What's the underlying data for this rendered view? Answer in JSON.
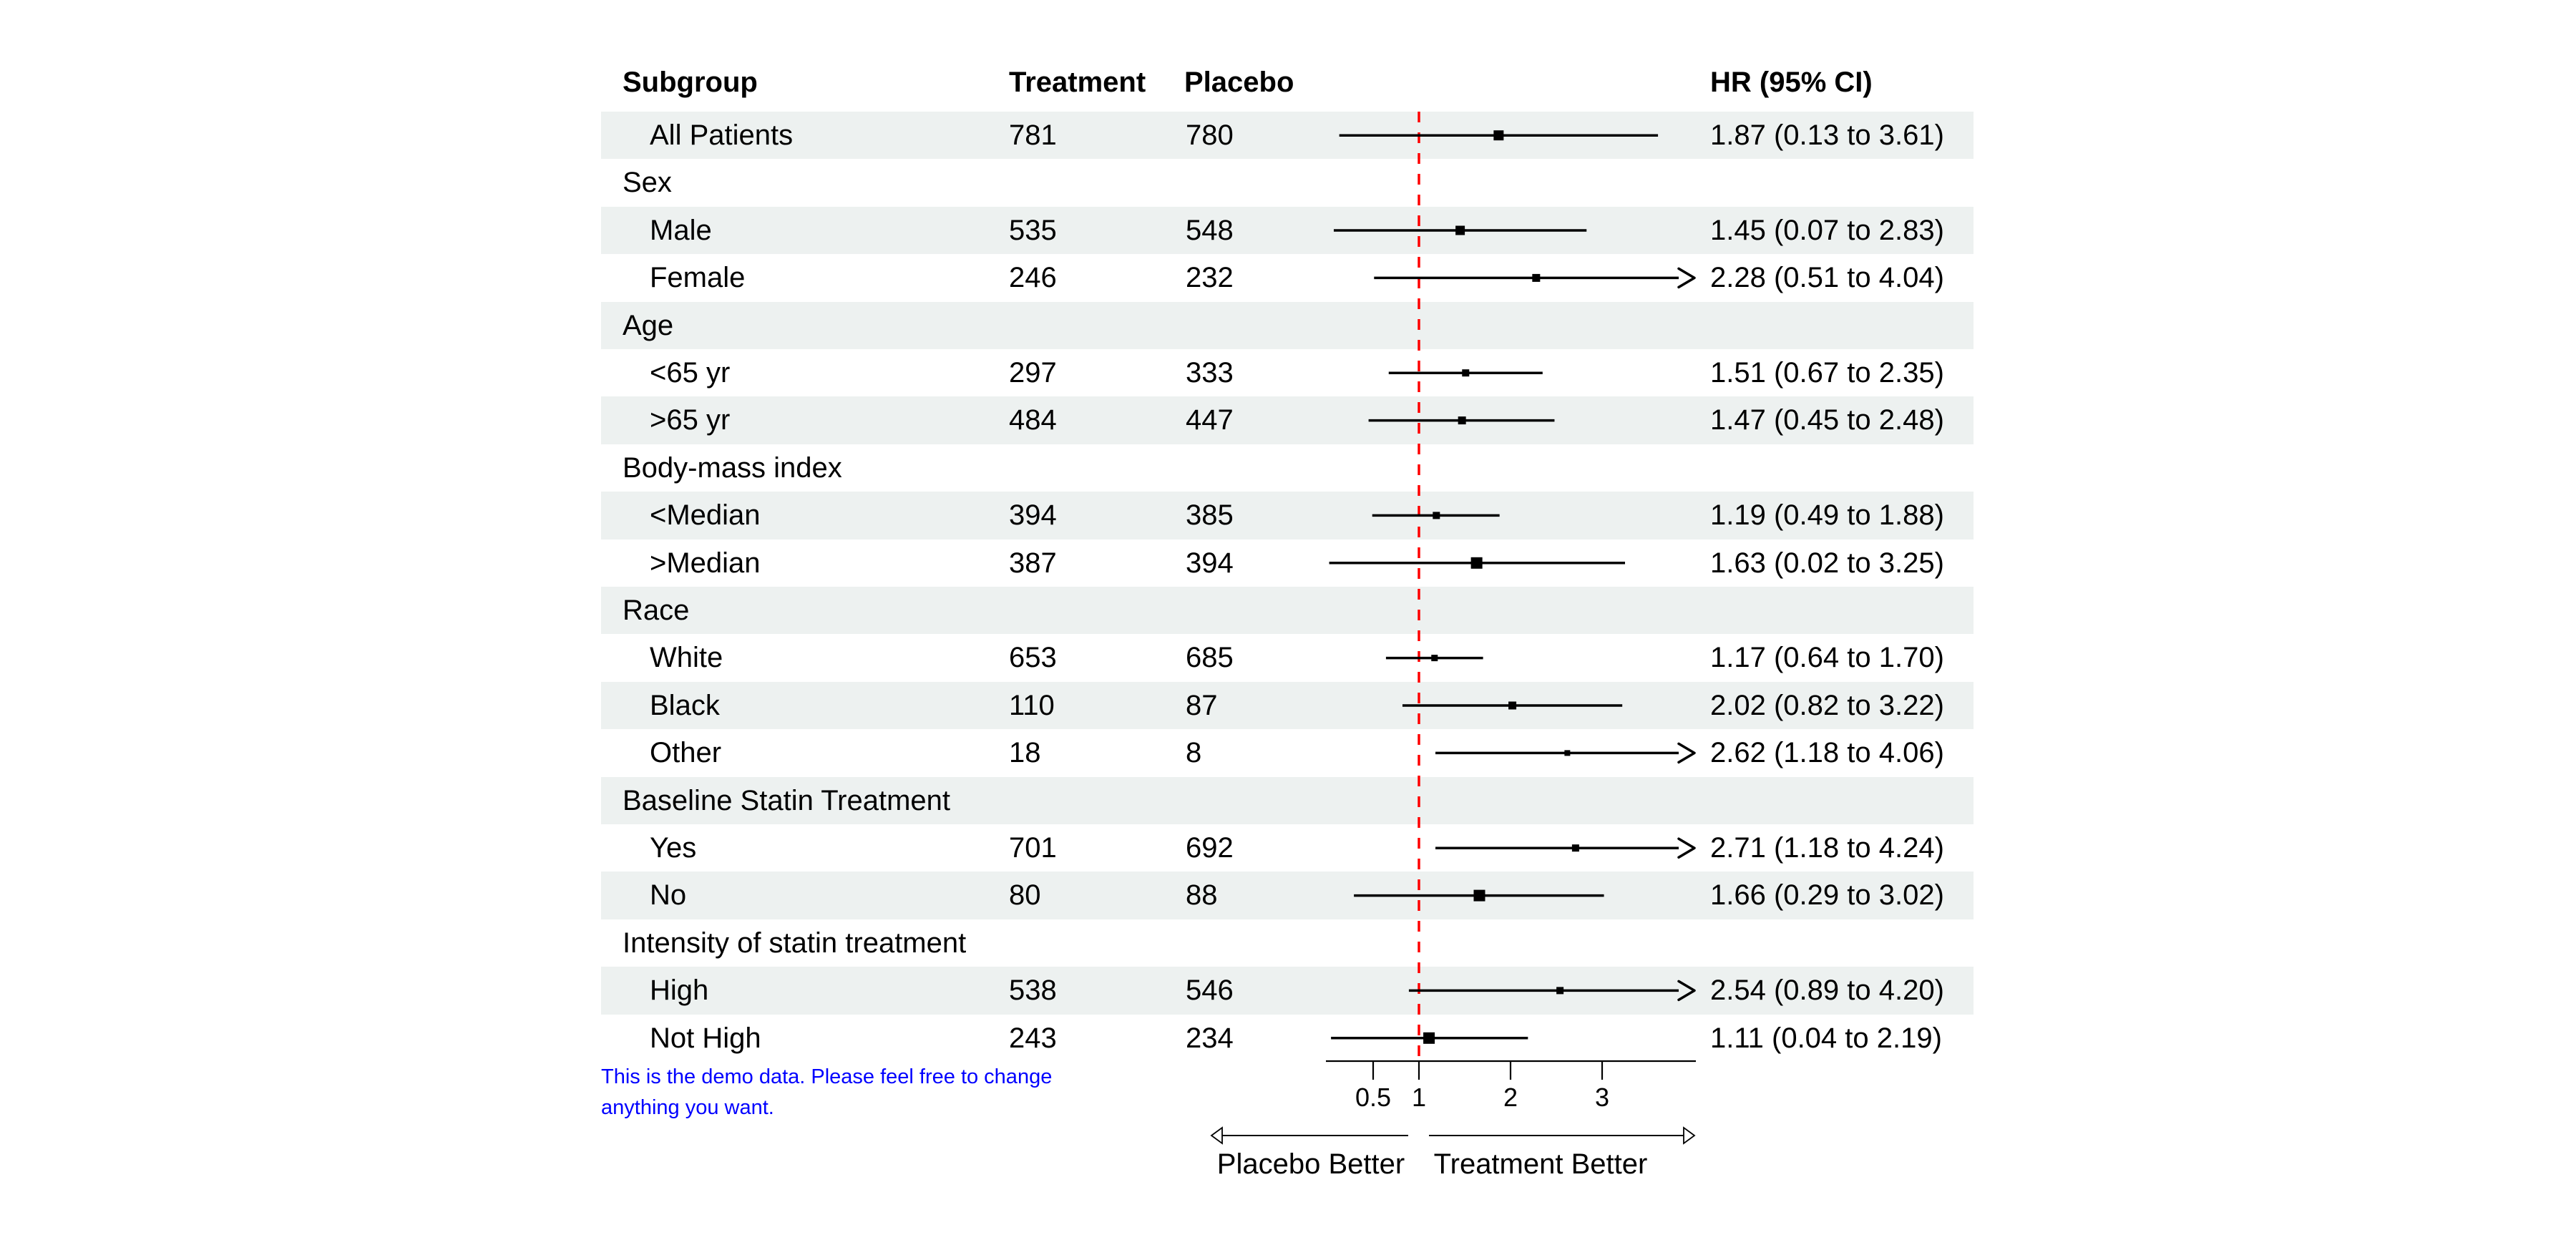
{
  "header": {
    "subgroup": "Subgroup",
    "treatment": "Treatment",
    "placebo": "Placebo",
    "hr": "HR (95% CI)"
  },
  "chart_data": {
    "type": "forest",
    "x_scale": "linear",
    "x_ticks": [
      0.5,
      1,
      2,
      3
    ],
    "x_clip_max": 4.0,
    "reference_value": 1,
    "rows": [
      {
        "kind": "item",
        "label": "All Patients",
        "treatment": "781",
        "placebo": "780",
        "hr": "1.87 (0.13 to 3.61)",
        "est": 1.87,
        "lo": 0.13,
        "hi": 3.61,
        "clipped": false,
        "weight": 14,
        "shaded": true
      },
      {
        "kind": "group",
        "label": "Sex",
        "shaded": false
      },
      {
        "kind": "item",
        "label": "Male",
        "treatment": "535",
        "placebo": "548",
        "hr": "1.45 (0.07 to 2.83)",
        "est": 1.45,
        "lo": 0.07,
        "hi": 2.83,
        "clipped": false,
        "weight": 13,
        "shaded": true
      },
      {
        "kind": "item",
        "label": "Female",
        "treatment": "246",
        "placebo": "232",
        "hr": "2.28 (0.51 to 4.04)",
        "est": 2.28,
        "lo": 0.51,
        "hi": 4.04,
        "clipped": true,
        "weight": 11,
        "shaded": false
      },
      {
        "kind": "group",
        "label": "Age",
        "shaded": true
      },
      {
        "kind": "item",
        "label": "<65 yr",
        "treatment": "297",
        "placebo": "333",
        "hr": "1.51 (0.67 to 2.35)",
        "est": 1.51,
        "lo": 0.67,
        "hi": 2.35,
        "clipped": false,
        "weight": 10,
        "shaded": false
      },
      {
        "kind": "item",
        "label": ">65 yr",
        "treatment": "484",
        "placebo": "447",
        "hr": "1.47 (0.45 to 2.48)",
        "est": 1.47,
        "lo": 0.45,
        "hi": 2.48,
        "clipped": false,
        "weight": 11,
        "shaded": true
      },
      {
        "kind": "group",
        "label": "Body-mass index",
        "shaded": false
      },
      {
        "kind": "item",
        "label": "<Median",
        "treatment": "394",
        "placebo": "385",
        "hr": "1.19 (0.49 to 1.88)",
        "est": 1.19,
        "lo": 0.49,
        "hi": 1.88,
        "clipped": false,
        "weight": 10,
        "shaded": true
      },
      {
        "kind": "item",
        "label": ">Median",
        "treatment": "387",
        "placebo": "394",
        "hr": "1.63 (0.02 to 3.25)",
        "est": 1.63,
        "lo": 0.02,
        "hi": 3.25,
        "clipped": false,
        "weight": 16,
        "shaded": false
      },
      {
        "kind": "group",
        "label": "Race",
        "shaded": true
      },
      {
        "kind": "item",
        "label": "White",
        "treatment": "653",
        "placebo": "685",
        "hr": "1.17 (0.64 to 1.70)",
        "est": 1.17,
        "lo": 0.64,
        "hi": 1.7,
        "clipped": false,
        "weight": 9,
        "shaded": false
      },
      {
        "kind": "item",
        "label": "Black",
        "treatment": "110",
        "placebo": "87",
        "hr": "2.02 (0.82 to 3.22)",
        "est": 2.02,
        "lo": 0.82,
        "hi": 3.22,
        "clipped": false,
        "weight": 11,
        "shaded": true
      },
      {
        "kind": "item",
        "label": "Other",
        "treatment": "18",
        "placebo": "8",
        "hr": "2.62 (1.18 to 4.06)",
        "est": 2.62,
        "lo": 1.18,
        "hi": 4.06,
        "clipped": true,
        "weight": 8,
        "shaded": false
      },
      {
        "kind": "group",
        "label": "Baseline Statin Treatment",
        "shaded": true
      },
      {
        "kind": "item",
        "label": "Yes",
        "treatment": "701",
        "placebo": "692",
        "hr": "2.71 (1.18 to 4.24)",
        "est": 2.71,
        "lo": 1.18,
        "hi": 4.24,
        "clipped": true,
        "weight": 10,
        "shaded": false
      },
      {
        "kind": "item",
        "label": "No",
        "treatment": "80",
        "placebo": "88",
        "hr": "1.66 (0.29 to 3.02)",
        "est": 1.66,
        "lo": 0.29,
        "hi": 3.02,
        "clipped": false,
        "weight": 16,
        "shaded": true
      },
      {
        "kind": "group",
        "label": "Intensity of statin treatment",
        "shaded": false
      },
      {
        "kind": "item",
        "label": "High",
        "treatment": "538",
        "placebo": "546",
        "hr": "2.54 (0.89 to 4.20)",
        "est": 2.54,
        "lo": 0.89,
        "hi": 4.2,
        "clipped": true,
        "weight": 10,
        "shaded": true
      },
      {
        "kind": "item",
        "label": "Not High",
        "treatment": "243",
        "placebo": "234",
        "hr": "1.11 (0.04 to 2.19)",
        "est": 1.11,
        "lo": 0.04,
        "hi": 2.19,
        "clipped": false,
        "weight": 16,
        "shaded": false
      }
    ],
    "axis_captions": {
      "left_label": "Placebo Better",
      "right_label": "Treatment Better"
    }
  },
  "footer": {
    "line1": "This is the demo data. Please feel free to change",
    "line2": "anything you want."
  },
  "colors": {
    "stripe": "#edf1f0",
    "reference_line": "#ff0000",
    "marker": "#000000",
    "footer_text": "#0000ff"
  }
}
